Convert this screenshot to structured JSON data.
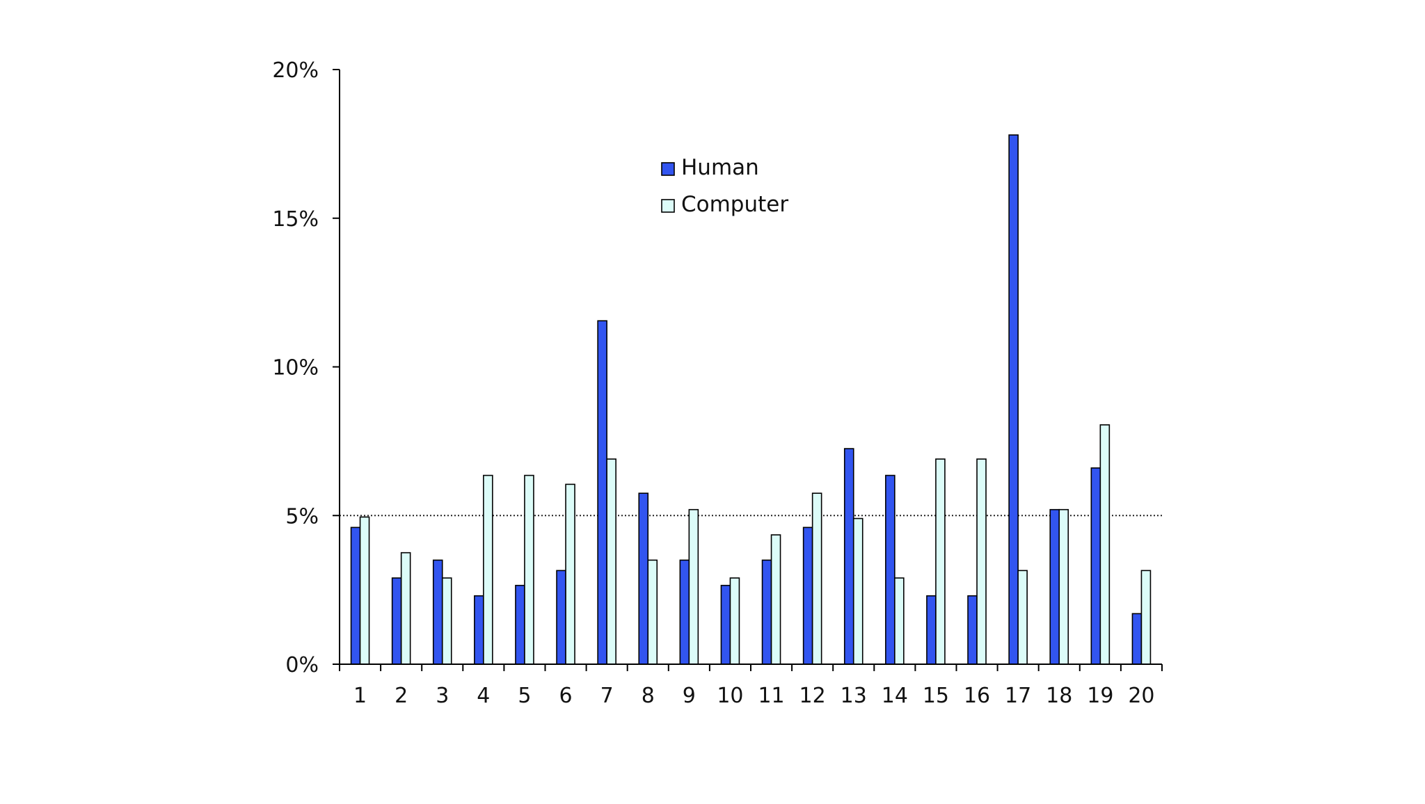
{
  "chart_data": {
    "type": "bar",
    "title": "",
    "xlabel": "",
    "ylabel": "",
    "categories": [
      "1",
      "2",
      "3",
      "4",
      "5",
      "6",
      "7",
      "8",
      "9",
      "10",
      "11",
      "12",
      "13",
      "14",
      "15",
      "16",
      "17",
      "18",
      "19",
      "20"
    ],
    "series": [
      {
        "name": "Human",
        "color": "#3255f0",
        "values": [
          4.6,
          2.9,
          3.5,
          2.3,
          2.65,
          3.15,
          11.55,
          5.75,
          3.5,
          2.65,
          3.5,
          4.6,
          7.25,
          6.35,
          2.3,
          2.3,
          17.8,
          5.2,
          6.6,
          1.7
        ]
      },
      {
        "name": "Computer",
        "color": "#dcfcf8",
        "values": [
          4.95,
          3.75,
          2.9,
          6.35,
          6.35,
          6.05,
          6.9,
          3.5,
          5.2,
          2.9,
          4.35,
          5.75,
          4.9,
          2.9,
          6.9,
          6.9,
          3.15,
          5.2,
          8.05,
          3.15
        ]
      }
    ],
    "ylim": [
      0,
      20
    ],
    "y_ticks": [
      0,
      5,
      10,
      15,
      20
    ],
    "y_tick_labels": [
      "0%",
      "5%",
      "10%",
      "15%",
      "20%"
    ],
    "reference_line": {
      "value": 5,
      "style": "dotted"
    },
    "grid": false,
    "legend": {
      "position": "top-center"
    }
  }
}
